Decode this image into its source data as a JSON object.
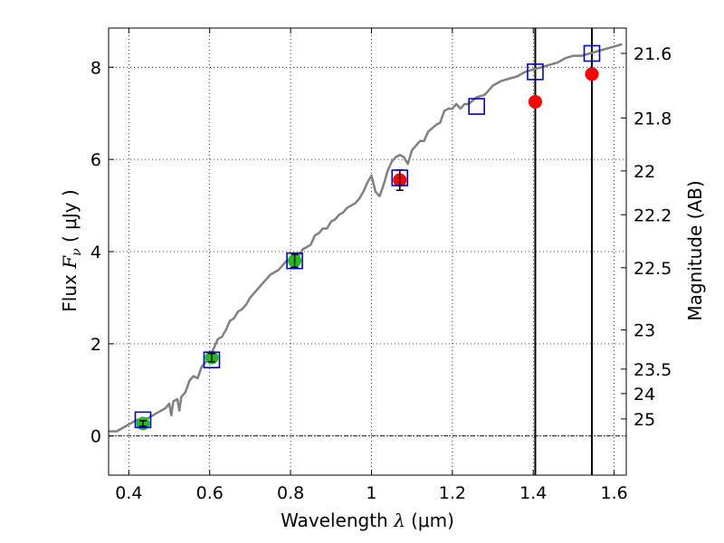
{
  "chart_data": {
    "type": "scatter",
    "xlabel": "Wavelength  λ (μm)",
    "xlabel_parts": {
      "text": "Wavelength  ",
      "symbol": "λ",
      "units": " (μm)"
    },
    "ylabel": "Flux  Fν  ( μJy )",
    "ylabel_parts": {
      "text": "Flux  ",
      "symbol": "F",
      "subscript": "ν",
      "units": "  ( μJy )"
    },
    "y2label": "Magnitude (AB)",
    "xlim": [
      0.35,
      1.63
    ],
    "ylim": [
      -0.85,
      8.85
    ],
    "grid": true,
    "xticks": [
      0.4,
      0.6,
      0.8,
      1.0,
      1.2,
      1.4,
      1.6
    ],
    "xtick_labels": [
      "0.4",
      "0.6",
      "0.8",
      "1",
      "1.2",
      "1.4",
      "1.6"
    ],
    "yticks": [
      0,
      2,
      4,
      6,
      8
    ],
    "ytick_labels": [
      "0",
      "2",
      "4",
      "6",
      "8"
    ],
    "y2_ticks": [
      {
        "label": "21.6",
        "flux": 8.3
      },
      {
        "label": "21.8",
        "flux": 6.9
      },
      {
        "label": "22",
        "flux": 5.75
      },
      {
        "label": "22.2",
        "flux": 4.8
      },
      {
        "label": "22.5",
        "flux": 3.65
      },
      {
        "label": "23",
        "flux": 2.3
      },
      {
        "label": "23.5",
        "flux": 1.45
      },
      {
        "label": "24",
        "flux": 0.92
      },
      {
        "label": "25",
        "flux": 0.37
      }
    ],
    "vertical_lines": [
      1.405,
      1.545
    ],
    "zero_line": 0,
    "series": [
      {
        "kind": "sed-model",
        "color": "#808080",
        "x": [
          0.35,
          0.37,
          0.39,
          0.41,
          0.42,
          0.44,
          0.46,
          0.47,
          0.48,
          0.49,
          0.5,
          0.505,
          0.51,
          0.52,
          0.525,
          0.53,
          0.54,
          0.55,
          0.56,
          0.57,
          0.58,
          0.59,
          0.6,
          0.61,
          0.62,
          0.63,
          0.64,
          0.65,
          0.66,
          0.67,
          0.68,
          0.69,
          0.7,
          0.71,
          0.72,
          0.73,
          0.74,
          0.75,
          0.76,
          0.77,
          0.78,
          0.79,
          0.8,
          0.81,
          0.82,
          0.83,
          0.84,
          0.85,
          0.86,
          0.87,
          0.88,
          0.89,
          0.9,
          0.91,
          0.92,
          0.93,
          0.94,
          0.95,
          0.96,
          0.97,
          0.98,
          0.99,
          1.0,
          1.01,
          1.02,
          1.03,
          1.04,
          1.05,
          1.06,
          1.07,
          1.08,
          1.09,
          1.1,
          1.11,
          1.12,
          1.13,
          1.14,
          1.16,
          1.17,
          1.18,
          1.19,
          1.2,
          1.21,
          1.22,
          1.23,
          1.24,
          1.26,
          1.28,
          1.3,
          1.32,
          1.34,
          1.36,
          1.38,
          1.4,
          1.42,
          1.44,
          1.46,
          1.48,
          1.5,
          1.52,
          1.54,
          1.56,
          1.58,
          1.6,
          1.62
        ],
        "y": [
          0.1,
          0.1,
          0.2,
          0.3,
          0.35,
          0.35,
          0.45,
          0.5,
          0.55,
          0.6,
          0.7,
          0.45,
          0.75,
          0.8,
          0.55,
          0.85,
          0.95,
          1.2,
          1.3,
          1.25,
          1.5,
          1.6,
          1.7,
          1.9,
          2.1,
          2.15,
          2.3,
          2.5,
          2.55,
          2.7,
          2.75,
          2.85,
          3.0,
          3.1,
          3.2,
          3.3,
          3.4,
          3.5,
          3.55,
          3.6,
          3.7,
          3.8,
          3.85,
          3.95,
          3.9,
          4.05,
          4.1,
          4.15,
          4.35,
          4.4,
          4.5,
          4.5,
          4.65,
          4.7,
          4.8,
          4.85,
          4.95,
          5.0,
          5.05,
          5.15,
          5.3,
          5.5,
          5.65,
          5.3,
          5.2,
          5.45,
          5.75,
          5.95,
          6.05,
          6.1,
          6.05,
          5.9,
          6.2,
          6.3,
          6.4,
          6.4,
          6.6,
          6.75,
          6.8,
          7.05,
          7.1,
          7.1,
          7.2,
          7.1,
          7.2,
          7.2,
          7.35,
          7.4,
          7.6,
          7.7,
          7.75,
          7.8,
          7.9,
          7.95,
          8.0,
          8.05,
          8.1,
          8.2,
          8.25,
          8.25,
          8.3,
          8.35,
          8.4,
          8.45,
          8.5
        ]
      },
      {
        "kind": "model-photometry",
        "marker": "open-square",
        "color": "#0000cc",
        "x": [
          0.435,
          0.605,
          0.81,
          1.07,
          1.26,
          1.405,
          1.545
        ],
        "y": [
          0.35,
          1.65,
          3.8,
          5.6,
          7.15,
          7.9,
          8.3
        ]
      },
      {
        "kind": "observed-optical",
        "marker": "filled-circle",
        "color": "#22bb22",
        "x": [
          0.435,
          0.605,
          0.81
        ],
        "y": [
          0.27,
          1.7,
          3.8
        ],
        "yerr": [
          0.06,
          0.09,
          0.14
        ]
      },
      {
        "kind": "observed-nir",
        "marker": "filled-circle",
        "color": "#ff0000",
        "x": [
          1.07,
          1.405,
          1.545
        ],
        "y": [
          5.55,
          7.25,
          7.85
        ],
        "yerr": [
          0.22,
          0,
          0
        ]
      }
    ]
  }
}
